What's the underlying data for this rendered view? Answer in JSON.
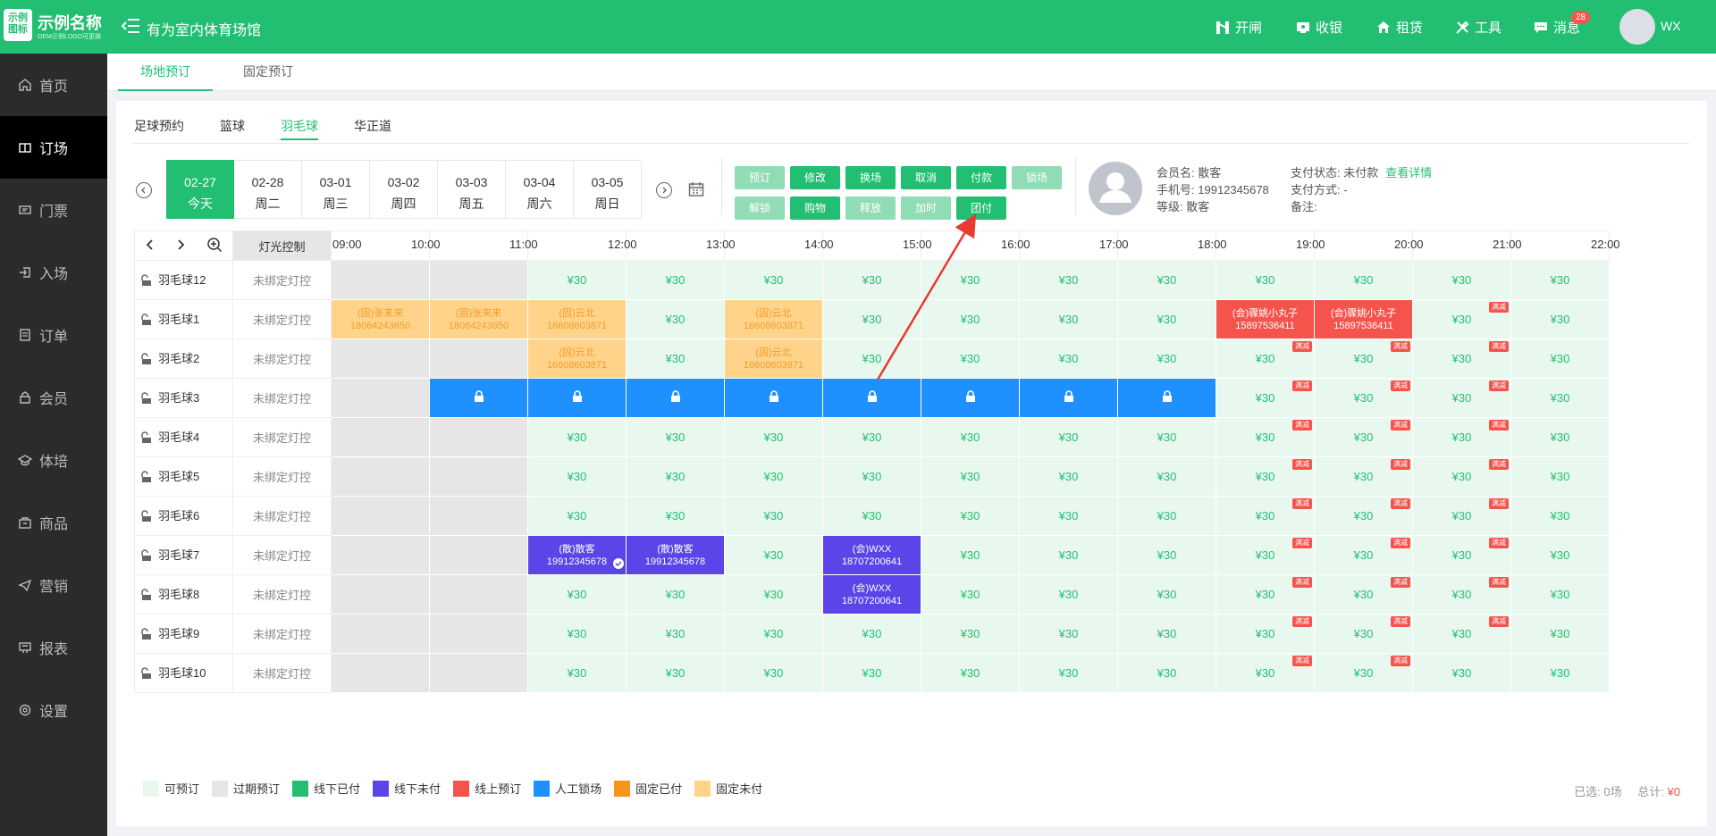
{
  "app": {
    "logo_text": "示例图标",
    "name": "示例名称",
    "sub": "OEM示例LOGO可更换",
    "venue": "有为室内体育场馆"
  },
  "topnav": [
    {
      "label": "开闸",
      "icon": "gate-icon"
    },
    {
      "label": "收银",
      "icon": "cashier-icon"
    },
    {
      "label": "租赁",
      "icon": "home-icon"
    },
    {
      "label": "工具",
      "icon": "tools-icon"
    },
    {
      "label": "消息",
      "icon": "message-icon"
    }
  ],
  "badge": "28",
  "user": "WX",
  "sidebar": [
    {
      "label": "首页"
    },
    {
      "label": "订场"
    },
    {
      "label": "门票"
    },
    {
      "label": "入场"
    },
    {
      "label": "订单"
    },
    {
      "label": "会员"
    },
    {
      "label": "体培"
    },
    {
      "label": "商品"
    },
    {
      "label": "营销"
    },
    {
      "label": "报表"
    },
    {
      "label": "设置"
    }
  ],
  "subtabs": [
    "场地预订",
    "固定预订"
  ],
  "sporttabs": [
    "足球预约",
    "篮球",
    "羽毛球",
    "华正道"
  ],
  "dates": [
    {
      "d": "02-27",
      "w": "今天"
    },
    {
      "d": "02-28",
      "w": "周二"
    },
    {
      "d": "03-01",
      "w": "周三"
    },
    {
      "d": "03-02",
      "w": "周四"
    },
    {
      "d": "03-03",
      "w": "周五"
    },
    {
      "d": "03-04",
      "w": "周六"
    },
    {
      "d": "03-05",
      "w": "周日"
    }
  ],
  "actions_row1": [
    "预订",
    "修改",
    "换场",
    "取消",
    "付款",
    "锁场"
  ],
  "actions_row2": [
    "解锁",
    "购物",
    "释放",
    "加时",
    "团付"
  ],
  "member": {
    "name_label": "会员名:",
    "name": "散客",
    "phone_label": "手机号:",
    "phone": "19912345678",
    "level_label": "等级:",
    "level": "散客",
    "pay_label": "支付状态:",
    "pay": "未付款",
    "detail_link": "查看详情",
    "method_label": "支付方式:",
    "method": "-",
    "note_label": "备注:",
    "note": ""
  },
  "grid_header": {
    "light": "灯光控制",
    "times": [
      "09:00",
      "10:00",
      "11:00",
      "12:00",
      "13:00",
      "14:00",
      "15:00",
      "16:00",
      "17:00",
      "18:00",
      "19:00",
      "20:00",
      "21:00",
      "22:00"
    ]
  },
  "light_text": "未绑定灯控",
  "price": "¥30",
  "promo_tag": "满减",
  "rows": [
    {
      "name": "羽毛球12",
      "cells": [
        "e",
        "e",
        "a",
        "a",
        "a",
        "a",
        "a",
        "a",
        "a",
        "a",
        "a",
        "a",
        "a"
      ]
    },
    {
      "name": "羽毛球1",
      "cells": [
        "f:(固)张来来|18064243650",
        "f:(固)张来来|18064243650",
        "f:(固)云北|16608603871",
        "a",
        "f:(固)云北|16608603871",
        "a",
        "a",
        "a",
        "a",
        "o:(会)骤姚小丸子|15897536411",
        "o:(会)骤姚小丸子|15897536411",
        "ap",
        "a"
      ]
    },
    {
      "name": "羽毛球2",
      "cells": [
        "e",
        "e",
        "f:(固)云北|16608603871",
        "a",
        "f:(固)云北|16608603871",
        "a",
        "a",
        "a",
        "a",
        "ap",
        "ap",
        "ap",
        "a"
      ]
    },
    {
      "name": "羽毛球3",
      "cells": [
        "e",
        "l",
        "l",
        "l",
        "l",
        "l",
        "l",
        "l",
        "l",
        "ap",
        "ap",
        "ap",
        "a"
      ]
    },
    {
      "name": "羽毛球4",
      "cells": [
        "e",
        "e",
        "a",
        "a",
        "a",
        "a",
        "a",
        "a",
        "a",
        "ap",
        "ap",
        "ap",
        "a"
      ]
    },
    {
      "name": "羽毛球5",
      "cells": [
        "e",
        "e",
        "a",
        "a",
        "a",
        "a",
        "a",
        "a",
        "a",
        "ap",
        "ap",
        "ap",
        "a"
      ]
    },
    {
      "name": "羽毛球6",
      "cells": [
        "e",
        "e",
        "a",
        "a",
        "a",
        "a",
        "a",
        "a",
        "a",
        "ap",
        "ap",
        "ap",
        "a"
      ]
    },
    {
      "name": "羽毛球7",
      "cells": [
        "e",
        "e",
        "u:(散)散客|19912345678|check",
        "u:(散)散客|19912345678",
        "a",
        "u:(会)WXX|18707200641",
        "a",
        "a",
        "a",
        "ap",
        "ap",
        "ap",
        "a"
      ]
    },
    {
      "name": "羽毛球8",
      "cells": [
        "e",
        "e",
        "a",
        "a",
        "a",
        "u:(会)WXX|18707200641",
        "a",
        "a",
        "a",
        "ap",
        "ap",
        "ap",
        "a"
      ]
    },
    {
      "name": "羽毛球9",
      "cells": [
        "e",
        "e",
        "a",
        "a",
        "a",
        "a",
        "a",
        "a",
        "a",
        "ap",
        "ap",
        "ap",
        "a"
      ]
    },
    {
      "name": "羽毛球10",
      "cells": [
        "e",
        "e",
        "a",
        "a",
        "a",
        "a",
        "a",
        "a",
        "a",
        "ap",
        "ap",
        "a",
        "a"
      ]
    }
  ],
  "legend": [
    {
      "label": "可预订",
      "color": "#e9f8ef"
    },
    {
      "label": "过期预订",
      "color": "#e6e6e6"
    },
    {
      "label": "线下已付",
      "color": "#22bf73"
    },
    {
      "label": "线下未付",
      "color": "#5b45e8"
    },
    {
      "label": "线上预订",
      "color": "#f5544d"
    },
    {
      "label": "人工锁场",
      "color": "#1e90ff"
    },
    {
      "label": "固定已付",
      "color": "#f7941d"
    },
    {
      "label": "固定未付",
      "color": "#ffd48a"
    }
  ],
  "summary": {
    "selected_label": "已选:",
    "selected": "0场",
    "total_label": "总计:",
    "total": "¥0"
  },
  "colors": {
    "brand": "#22bf73",
    "sidebar": "#2b2b2b",
    "danger": "#f5544d"
  }
}
